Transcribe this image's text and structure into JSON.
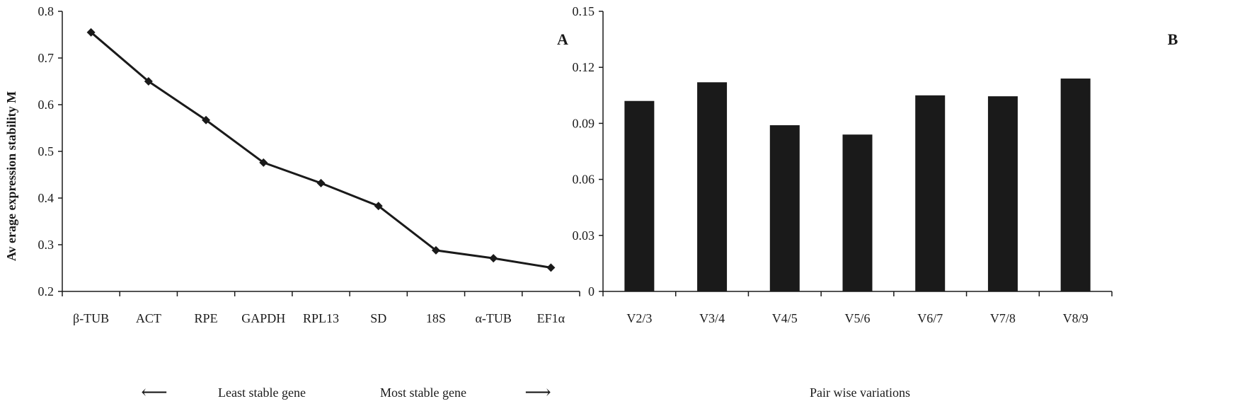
{
  "chart_data": [
    {
      "type": "line",
      "panel_label": "A",
      "title": "",
      "xlabel": "",
      "ylabel": "Av erage expression stability M",
      "categories": [
        "β-TUB",
        "ACT",
        "RPE",
        "GAPDH",
        "RPL13",
        "SD",
        "18S",
        "α-TUB",
        "EF1α"
      ],
      "series": [
        {
          "values": [
            0.755,
            0.65,
            0.567,
            0.476,
            0.432,
            0.383,
            0.288,
            0.271,
            0.251
          ]
        }
      ],
      "ylim": [
        0.2,
        0.8
      ],
      "yticks": [
        "0.2",
        "0.3",
        "0.4",
        "0.5",
        "0.6",
        "0.7",
        "0.8"
      ],
      "marker": "diamond",
      "grid": false,
      "annotations": {
        "left_arrow": "⟵",
        "least_stable": "Least stable gene",
        "most_stable": "Most stable gene",
        "right_arrow": "⟶"
      }
    },
    {
      "type": "bar",
      "panel_label": "B",
      "title": "",
      "xlabel": "Pair wise variations",
      "ylabel": "",
      "categories": [
        "V2/3",
        "V3/4",
        "V4/5",
        "V5/6",
        "V6/7",
        "V7/8",
        "V8/9"
      ],
      "series": [
        {
          "values": [
            0.102,
            0.112,
            0.089,
            0.084,
            0.105,
            0.1045,
            0.114
          ]
        }
      ],
      "ylim": [
        0,
        0.15
      ],
      "yticks": [
        "0",
        "0.03",
        "0.06",
        "0.09",
        "0.12",
        "0.15"
      ],
      "grid": false
    }
  ]
}
